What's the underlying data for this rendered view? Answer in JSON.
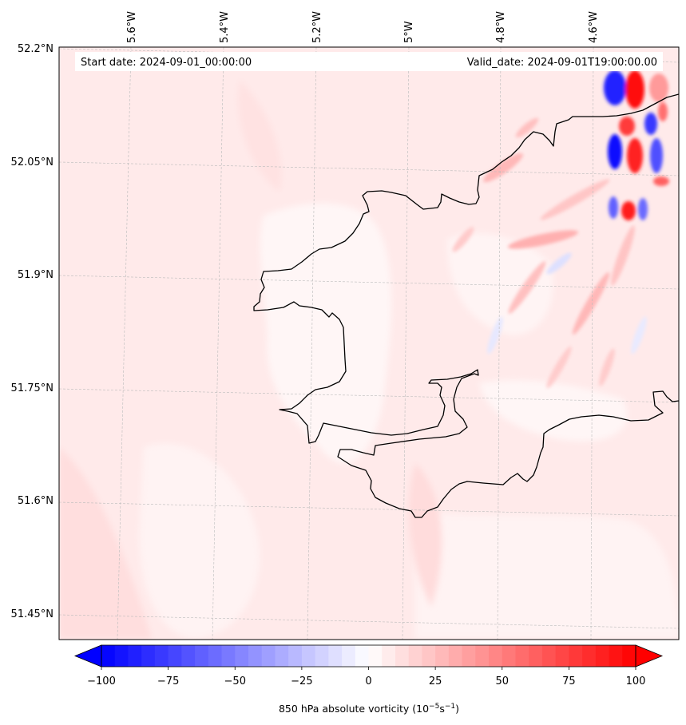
{
  "header": {
    "start_date": "Start date: 2024-09-01_00:00:00",
    "valid_date": "Valid_date: 2024-09-01T19:00:00.00"
  },
  "axes": {
    "lon_ticks": [
      "5.6°W",
      "5.4°W",
      "5.2°W",
      "5°W",
      "4.8°W",
      "4.6°W"
    ],
    "lat_ticks": [
      "52.2°N",
      "52.05°N",
      "51.9°N",
      "51.75°N",
      "51.6°N",
      "51.45°N"
    ]
  },
  "colorbar": {
    "ticks": [
      "−100",
      "−75",
      "−50",
      "−25",
      "0",
      "25",
      "50",
      "75",
      "100"
    ],
    "label_main": "850 hPa absolute vorticity (10",
    "label_exp1": "−5",
    "label_mid": "s",
    "label_exp2": "−1",
    "label_end": ")",
    "min_color": "#0000ff",
    "mid_color": "#ffffff",
    "max_color": "#ff0000"
  },
  "map": {
    "background_color": "#ffeaea",
    "coastline_color": "#000000",
    "gridline_color": "#bbbbbb"
  }
}
